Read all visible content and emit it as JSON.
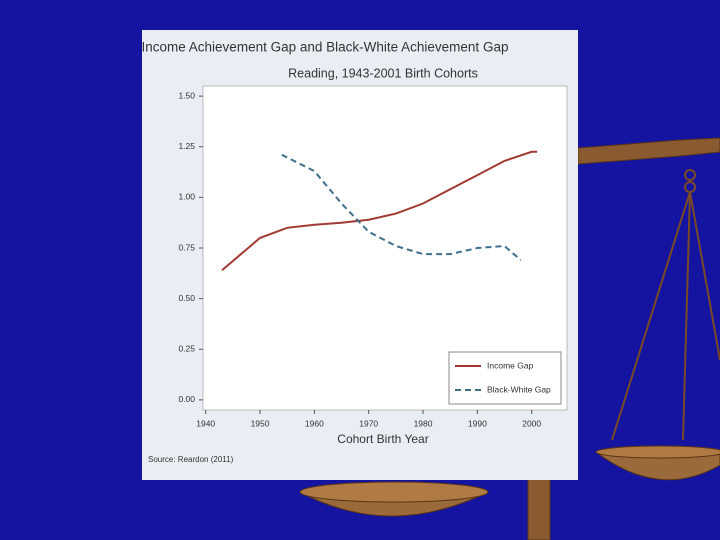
{
  "chart_data": {
    "type": "line",
    "title": "Income Achievement Gap and Black-White Achievement Gap",
    "subtitle": "Reading, 1943-2001 Birth Cohorts",
    "xlabel": "Cohort Birth Year",
    "source": "Source: Reardon (2011)",
    "xlim": [
      1939.5,
      2006.5
    ],
    "ylim": [
      -0.05,
      1.55
    ],
    "xticks": [
      1940,
      1950,
      1960,
      1970,
      1980,
      1990,
      2000
    ],
    "yticks": [
      {
        "value": 0,
        "label": "0.00"
      },
      {
        "value": 0.25,
        "label": "0.25"
      },
      {
        "value": 0.5,
        "label": "0.50"
      },
      {
        "value": 0.75,
        "label": "0.75"
      },
      {
        "value": 1,
        "label": "1.00"
      },
      {
        "value": 1.25,
        "label": "1.25"
      },
      {
        "value": 1.5,
        "label": "1.50"
      }
    ],
    "grid": false,
    "legend": "lower right",
    "series": [
      {
        "name": "Income Gap",
        "color": "#a03a32",
        "dash": false,
        "x": [
          1943,
          1950,
          1955,
          1960,
          1965,
          1970,
          1975,
          1980,
          1985,
          1990,
          1995,
          2000,
          2001
        ],
        "values": [
          0.64,
          0.8,
          0.85,
          0.865,
          0.875,
          0.89,
          0.92,
          0.97,
          1.04,
          1.11,
          1.18,
          1.225,
          1.225
        ]
      },
      {
        "name": "Black-White Gap",
        "color": "#3f6f8a",
        "dash": true,
        "x": [
          1954,
          1960,
          1965,
          1970,
          1975,
          1980,
          1985,
          1990,
          1995,
          1998
        ],
        "values": [
          1.21,
          1.13,
          0.97,
          0.83,
          0.76,
          0.72,
          0.72,
          0.75,
          0.76,
          0.69
        ]
      }
    ]
  }
}
